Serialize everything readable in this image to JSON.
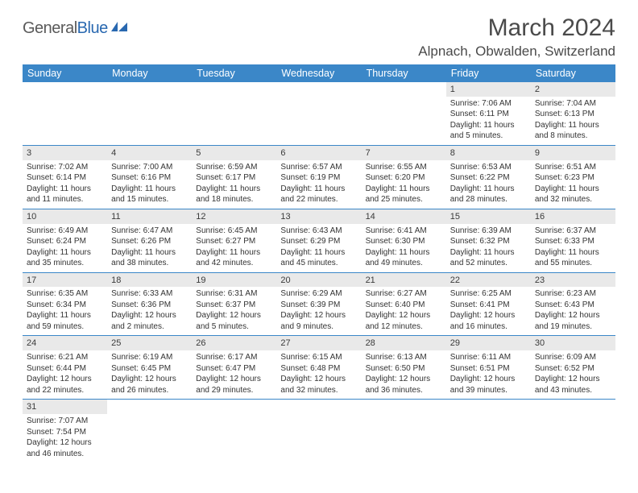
{
  "logo": {
    "text1": "General",
    "text2": "Blue"
  },
  "title": "March 2024",
  "location": "Alpnach, Obwalden, Switzerland",
  "weekdays": [
    "Sunday",
    "Monday",
    "Tuesday",
    "Wednesday",
    "Thursday",
    "Friday",
    "Saturday"
  ],
  "colors": {
    "header_bg": "#3b87c8",
    "header_text": "#ffffff",
    "daynum_bg": "#e9e9e9",
    "row_border": "#3b87c8",
    "logo_gray": "#5a5a5a",
    "logo_blue": "#2968b0"
  },
  "weeks": [
    [
      null,
      null,
      null,
      null,
      null,
      {
        "n": "1",
        "sr": "7:06 AM",
        "ss": "6:11 PM",
        "dl": "11 hours and 5 minutes."
      },
      {
        "n": "2",
        "sr": "7:04 AM",
        "ss": "6:13 PM",
        "dl": "11 hours and 8 minutes."
      }
    ],
    [
      {
        "n": "3",
        "sr": "7:02 AM",
        "ss": "6:14 PM",
        "dl": "11 hours and 11 minutes."
      },
      {
        "n": "4",
        "sr": "7:00 AM",
        "ss": "6:16 PM",
        "dl": "11 hours and 15 minutes."
      },
      {
        "n": "5",
        "sr": "6:59 AM",
        "ss": "6:17 PM",
        "dl": "11 hours and 18 minutes."
      },
      {
        "n": "6",
        "sr": "6:57 AM",
        "ss": "6:19 PM",
        "dl": "11 hours and 22 minutes."
      },
      {
        "n": "7",
        "sr": "6:55 AM",
        "ss": "6:20 PM",
        "dl": "11 hours and 25 minutes."
      },
      {
        "n": "8",
        "sr": "6:53 AM",
        "ss": "6:22 PM",
        "dl": "11 hours and 28 minutes."
      },
      {
        "n": "9",
        "sr": "6:51 AM",
        "ss": "6:23 PM",
        "dl": "11 hours and 32 minutes."
      }
    ],
    [
      {
        "n": "10",
        "sr": "6:49 AM",
        "ss": "6:24 PM",
        "dl": "11 hours and 35 minutes."
      },
      {
        "n": "11",
        "sr": "6:47 AM",
        "ss": "6:26 PM",
        "dl": "11 hours and 38 minutes."
      },
      {
        "n": "12",
        "sr": "6:45 AM",
        "ss": "6:27 PM",
        "dl": "11 hours and 42 minutes."
      },
      {
        "n": "13",
        "sr": "6:43 AM",
        "ss": "6:29 PM",
        "dl": "11 hours and 45 minutes."
      },
      {
        "n": "14",
        "sr": "6:41 AM",
        "ss": "6:30 PM",
        "dl": "11 hours and 49 minutes."
      },
      {
        "n": "15",
        "sr": "6:39 AM",
        "ss": "6:32 PM",
        "dl": "11 hours and 52 minutes."
      },
      {
        "n": "16",
        "sr": "6:37 AM",
        "ss": "6:33 PM",
        "dl": "11 hours and 55 minutes."
      }
    ],
    [
      {
        "n": "17",
        "sr": "6:35 AM",
        "ss": "6:34 PM",
        "dl": "11 hours and 59 minutes."
      },
      {
        "n": "18",
        "sr": "6:33 AM",
        "ss": "6:36 PM",
        "dl": "12 hours and 2 minutes."
      },
      {
        "n": "19",
        "sr": "6:31 AM",
        "ss": "6:37 PM",
        "dl": "12 hours and 5 minutes."
      },
      {
        "n": "20",
        "sr": "6:29 AM",
        "ss": "6:39 PM",
        "dl": "12 hours and 9 minutes."
      },
      {
        "n": "21",
        "sr": "6:27 AM",
        "ss": "6:40 PM",
        "dl": "12 hours and 12 minutes."
      },
      {
        "n": "22",
        "sr": "6:25 AM",
        "ss": "6:41 PM",
        "dl": "12 hours and 16 minutes."
      },
      {
        "n": "23",
        "sr": "6:23 AM",
        "ss": "6:43 PM",
        "dl": "12 hours and 19 minutes."
      }
    ],
    [
      {
        "n": "24",
        "sr": "6:21 AM",
        "ss": "6:44 PM",
        "dl": "12 hours and 22 minutes."
      },
      {
        "n": "25",
        "sr": "6:19 AM",
        "ss": "6:45 PM",
        "dl": "12 hours and 26 minutes."
      },
      {
        "n": "26",
        "sr": "6:17 AM",
        "ss": "6:47 PM",
        "dl": "12 hours and 29 minutes."
      },
      {
        "n": "27",
        "sr": "6:15 AM",
        "ss": "6:48 PM",
        "dl": "12 hours and 32 minutes."
      },
      {
        "n": "28",
        "sr": "6:13 AM",
        "ss": "6:50 PM",
        "dl": "12 hours and 36 minutes."
      },
      {
        "n": "29",
        "sr": "6:11 AM",
        "ss": "6:51 PM",
        "dl": "12 hours and 39 minutes."
      },
      {
        "n": "30",
        "sr": "6:09 AM",
        "ss": "6:52 PM",
        "dl": "12 hours and 43 minutes."
      }
    ],
    [
      {
        "n": "31",
        "sr": "7:07 AM",
        "ss": "7:54 PM",
        "dl": "12 hours and 46 minutes."
      },
      null,
      null,
      null,
      null,
      null,
      null
    ]
  ],
  "labels": {
    "sunrise": "Sunrise:",
    "sunset": "Sunset:",
    "daylight": "Daylight:"
  }
}
